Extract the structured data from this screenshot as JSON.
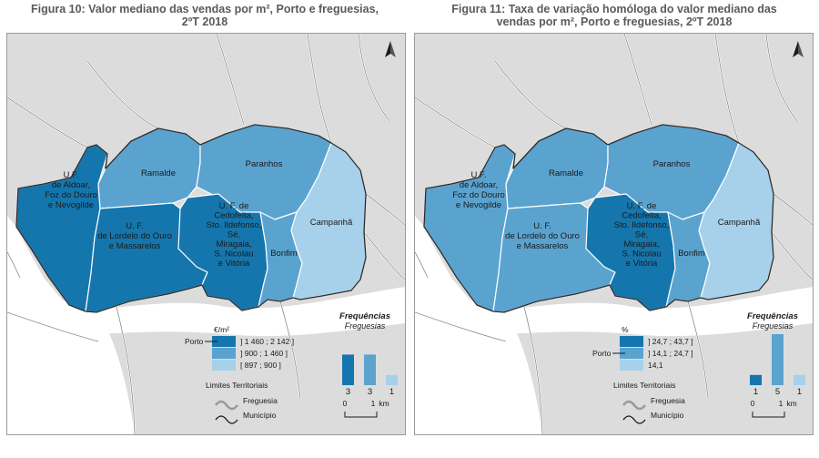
{
  "colors": {
    "dark": "#1576ad",
    "mid": "#5aa3cf",
    "light": "#a7d1ea",
    "land": "#dcdcdc",
    "white": "#ffffff",
    "border": "#2a2a2a"
  },
  "figures": [
    {
      "title_line1": "Figura 10: Valor mediano das vendas por m², Porto e freguesias,",
      "title_line2": "2ºT 2018",
      "areas": {
        "aldoar": "dark",
        "ramalde": "mid",
        "paranhos": "mid",
        "lordelo": "dark",
        "cedofeita": "dark",
        "bonfim": "mid",
        "campanha": "light"
      },
      "legend": {
        "unit": "€/m²",
        "porto_label": "Porto",
        "porto_class": 0,
        "classes": [
          {
            "label": "] 1 460 ; 2 142 ]",
            "color": "dark"
          },
          {
            "label": "] 900 ; 1 460 ]",
            "color": "mid"
          },
          {
            "label": "[ 897 ; 900 ]",
            "color": "light"
          }
        ]
      },
      "histogram": {
        "title": "Frequências",
        "subtitle": "Freguesias",
        "values": [
          3,
          3,
          1
        ]
      }
    },
    {
      "title_line1": "Figura 11: Taxa de variação homóloga do valor mediano das",
      "title_line2": "vendas por m², Porto e freguesias, 2ºT 2018",
      "areas": {
        "aldoar": "mid",
        "ramalde": "mid",
        "paranhos": "mid",
        "lordelo": "mid",
        "cedofeita": "dark",
        "bonfim": "mid",
        "campanha": "light"
      },
      "legend": {
        "unit": "%",
        "porto_label": "Porto",
        "porto_class": 1,
        "classes": [
          {
            "label": "] 24,7 ; 43,7 ]",
            "color": "dark"
          },
          {
            "label": "] 14,1 ; 24,7 ]",
            "color": "mid"
          },
          {
            "label": "14,1",
            "color": "light"
          }
        ]
      },
      "histogram": {
        "title": "Frequências",
        "subtitle": "Freguesias",
        "values": [
          1,
          5,
          1
        ]
      }
    }
  ],
  "labels": {
    "aldoar": [
      "U.F.",
      "de Aldoar,",
      "Foz do Douro",
      "e Nevogilde"
    ],
    "ramalde": [
      "Ramalde"
    ],
    "paranhos": [
      "Paranhos"
    ],
    "lordelo": [
      "U. F.",
      "de Lordelo do Ouro",
      "e Massarelos"
    ],
    "cedofeita": [
      "U. F. de",
      "Cedofeita,",
      "Sto. Ildefonso,",
      "Sé,",
      "Miragaia,",
      "S. Nicolau",
      "e Vitória"
    ],
    "bonfim": [
      "Bonfim"
    ],
    "campanha": [
      "Campanhã"
    ]
  },
  "limits": {
    "title": "Limites Territoriais",
    "freguesia": "Freguesia",
    "municipio": "Município"
  },
  "scale": {
    "zero": "0",
    "one": "1",
    "unit": "km"
  },
  "north_arrow": "north-arrow-icon"
}
